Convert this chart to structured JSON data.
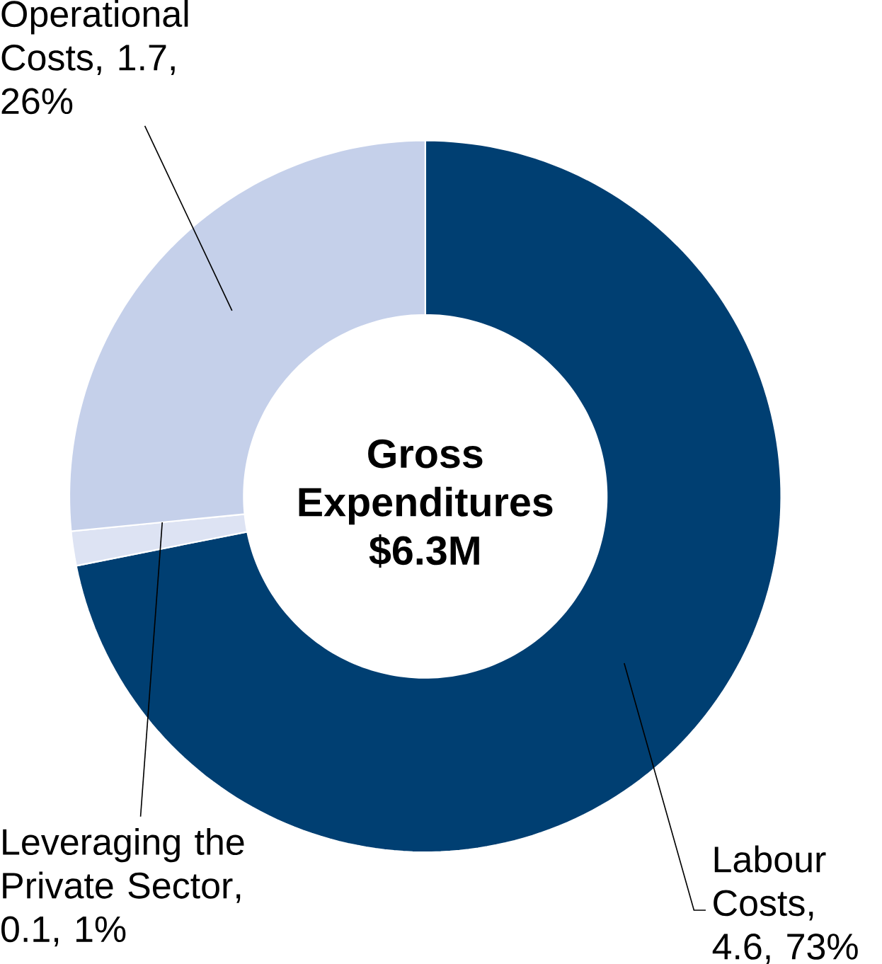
{
  "chart_data": {
    "type": "donut",
    "categories": [
      "Labour Costs",
      "Leveraging the Private Sector",
      "Operational Costs"
    ],
    "values": [
      4.6,
      0.1,
      1.7
    ],
    "value_labels": [
      ", 4.6, 73%",
      ", 0.1, 1%",
      ", 1.7, 26%"
    ],
    "colors": [
      "#003f72",
      "#dde3f3",
      "#c5d0ea"
    ],
    "annotations": [
      "Gross Expenditures $6.3M"
    ]
  }
}
